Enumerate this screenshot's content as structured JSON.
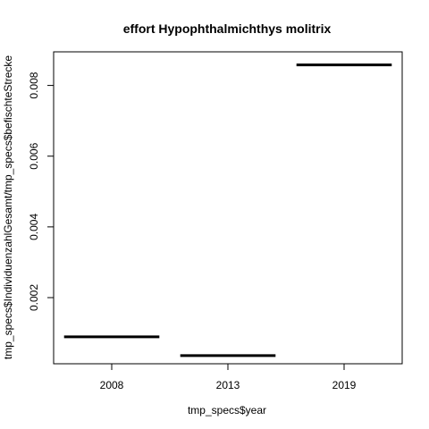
{
  "chart_data": {
    "type": "bar",
    "title": "effort Hypophthalmichthys molitrix",
    "xlabel": "tmp_specs$year",
    "ylabel": "tmp_specs$IndividuenzahlGesamt/tmp_specs$befischteStrecke",
    "categories": [
      "2008",
      "2013",
      "2019"
    ],
    "values": [
      0.00089,
      0.00036,
      0.00858
    ],
    "ylim": [
      0.00013,
      0.00895
    ],
    "yticks": [
      0.002,
      0.004,
      0.006,
      0.008
    ],
    "ytick_labels": [
      "0.002",
      "0.004",
      "0.006",
      "0.008"
    ],
    "grid": false,
    "legend": "none"
  }
}
